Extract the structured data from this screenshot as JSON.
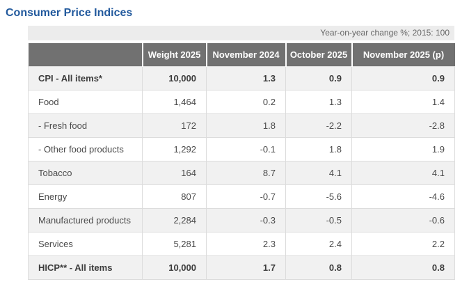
{
  "page": {
    "title": "Consumer Price Indices"
  },
  "table": {
    "caption": "Year-on-year change %; 2015: 100",
    "columns": [
      "",
      "Weight 2025",
      "November 2024",
      "October 2025",
      "November 2025 (p)"
    ],
    "rows": [
      {
        "label": "CPI - All items*",
        "bold": true,
        "values": [
          "10,000",
          "1.3",
          "0.9",
          "0.9"
        ]
      },
      {
        "label": "Food",
        "bold": false,
        "values": [
          "1,464",
          "0.2",
          "1.3",
          "1.4"
        ]
      },
      {
        "label": "- Fresh food",
        "bold": false,
        "values": [
          "172",
          "1.8",
          "-2.2",
          "-2.8"
        ]
      },
      {
        "label": "- Other food products",
        "bold": false,
        "values": [
          "1,292",
          "-0.1",
          "1.8",
          "1.9"
        ]
      },
      {
        "label": "Tobacco",
        "bold": false,
        "values": [
          "164",
          "8.7",
          "4.1",
          "4.1"
        ]
      },
      {
        "label": "Energy",
        "bold": false,
        "values": [
          "807",
          "-0.7",
          "-5.6",
          "-4.6"
        ]
      },
      {
        "label": "Manufactured products",
        "bold": false,
        "values": [
          "2,284",
          "-0.3",
          "-0.5",
          "-0.6"
        ]
      },
      {
        "label": "Services",
        "bold": false,
        "values": [
          "5,281",
          "2.3",
          "2.4",
          "2.2"
        ]
      },
      {
        "label": "HICP** - All items",
        "bold": true,
        "values": [
          "10,000",
          "1.7",
          "0.8",
          "0.8"
        ]
      }
    ]
  },
  "colors": {
    "title_text": "#235a9d",
    "header_bg": "#717171",
    "header_text": "#ffffff",
    "zebra_row_bg": "#f1f1f1",
    "caption_bar_bg": "#ececec",
    "caption_text": "#666666",
    "cell_border": "#dcdcdc",
    "body_text": "#4a4a4a"
  },
  "chart_data": {
    "type": "table",
    "title": "Consumer Price Indices",
    "subtitle": "Year-on-year change %; 2015: 100",
    "columns": [
      "",
      "Weight 2025",
      "November 2024",
      "October 2025",
      "November 2025 (p)"
    ],
    "rows": [
      [
        "CPI - All items*",
        10000,
        1.3,
        0.9,
        0.9
      ],
      [
        "Food",
        1464,
        0.2,
        1.3,
        1.4
      ],
      [
        "- Fresh food",
        172,
        1.8,
        -2.2,
        -2.8
      ],
      [
        "- Other food products",
        1292,
        -0.1,
        1.8,
        1.9
      ],
      [
        "Tobacco",
        164,
        8.7,
        4.1,
        4.1
      ],
      [
        "Energy",
        807,
        -0.7,
        -5.6,
        -4.6
      ],
      [
        "Manufactured products",
        2284,
        -0.3,
        -0.5,
        -0.6
      ],
      [
        "Services",
        5281,
        2.3,
        2.4,
        2.2
      ],
      [
        "HICP** - All items",
        10000,
        1.7,
        0.8,
        0.8
      ]
    ]
  }
}
